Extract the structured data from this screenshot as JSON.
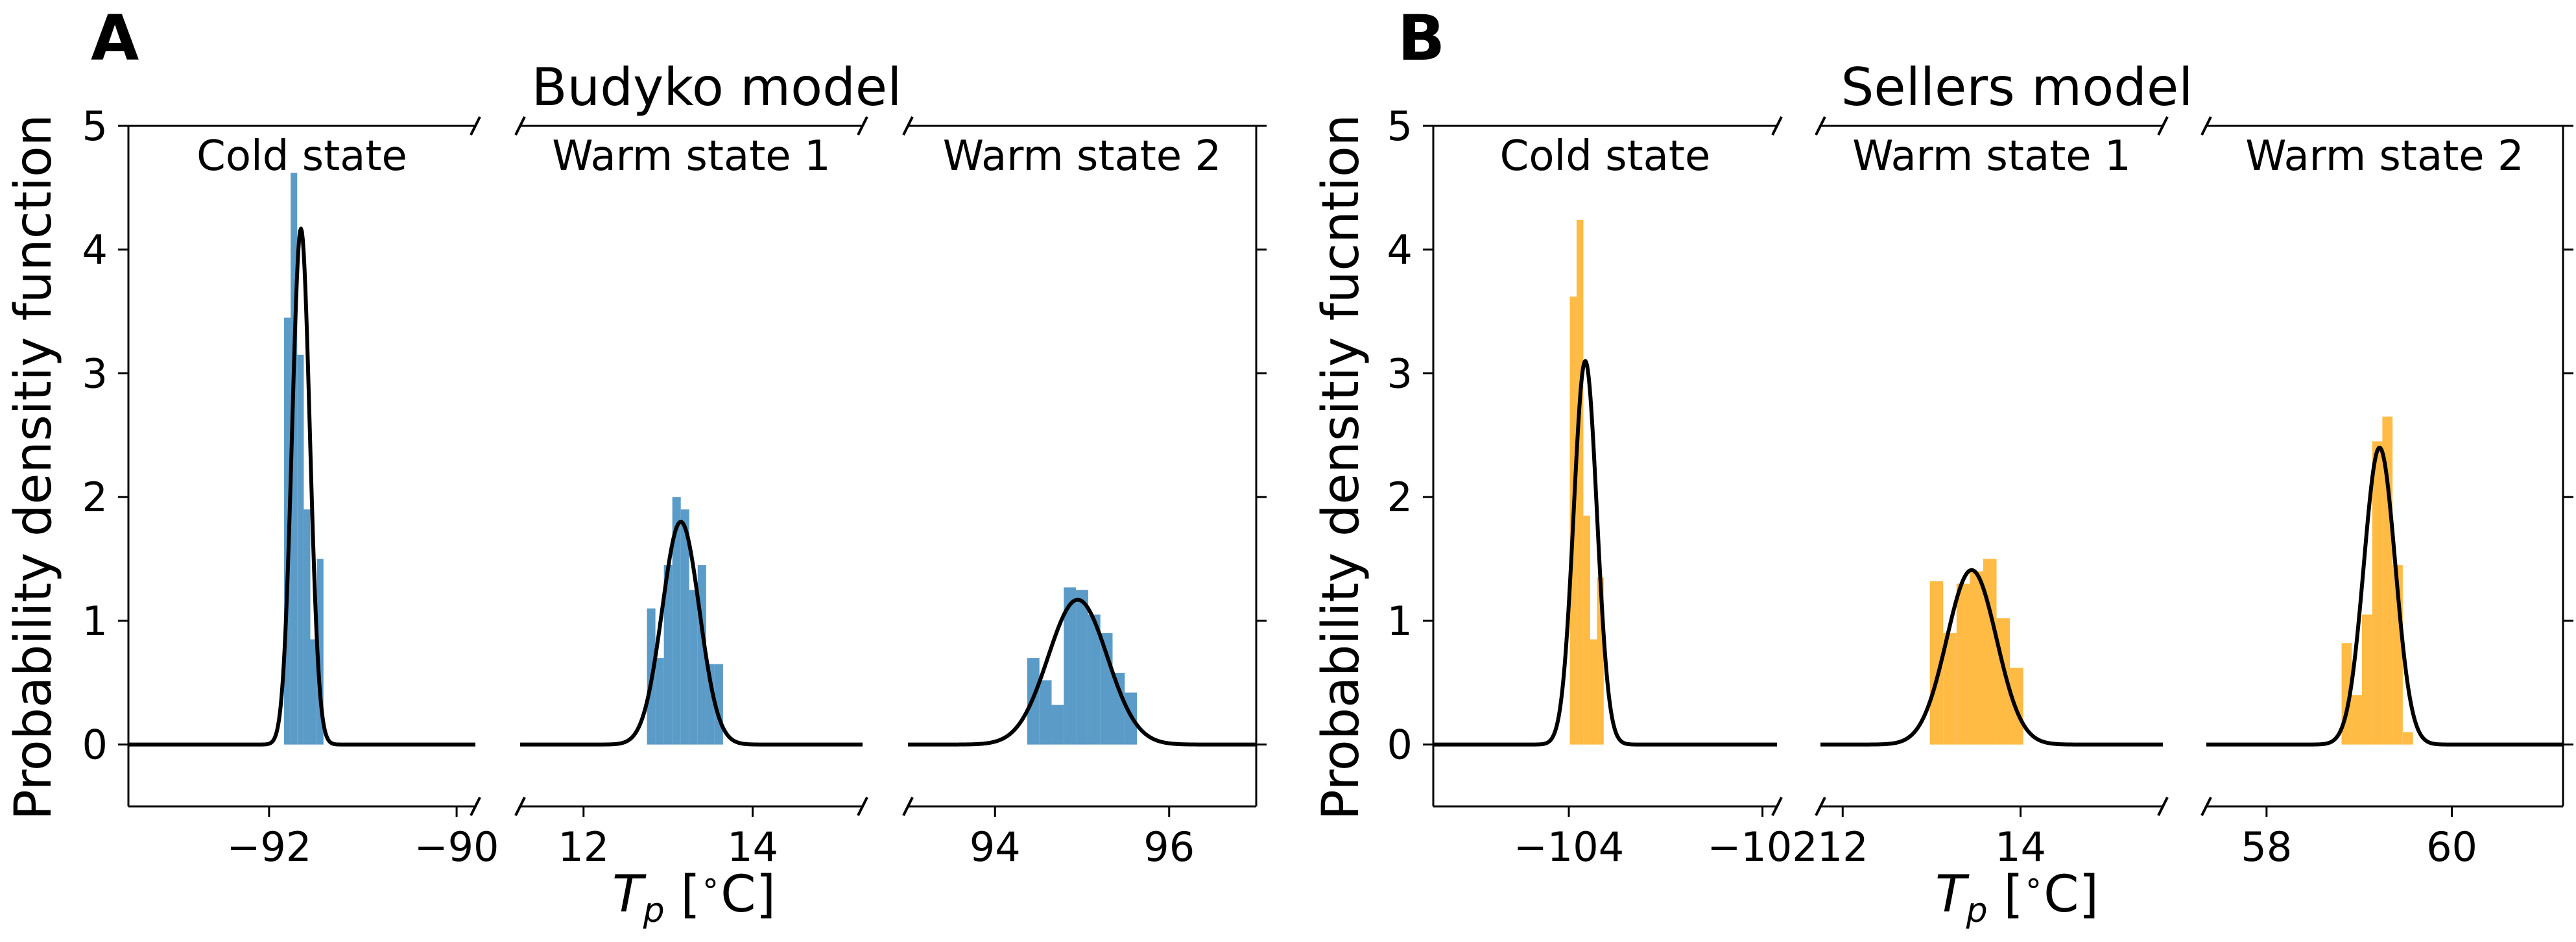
{
  "chart_data": [
    {
      "type": "histogram",
      "panel_label": "A",
      "title": "Budyko model",
      "ylabel": "Probability densitiy function",
      "xlabel": "T_p [°C]",
      "ylim": [
        -0.5,
        5
      ],
      "yticks": [
        0,
        1,
        2,
        3,
        4,
        5
      ],
      "colors": {
        "histogram": "#5b9bc8",
        "fit_line": "#000000"
      },
      "subplots": [
        {
          "label": "Cold state",
          "xlim": [
            -93.5,
            -89.8
          ],
          "xticks": [
            -92,
            -90
          ],
          "bin_width": 0.07,
          "bins": [
            [
              -91.84,
              3.45
            ],
            [
              -91.77,
              4.62
            ],
            [
              -91.7,
              3.15
            ],
            [
              -91.63,
              1.9
            ],
            [
              -91.56,
              0.85
            ],
            [
              -91.49,
              1.5
            ]
          ],
          "fit": {
            "mean": -91.66,
            "sd": 0.095,
            "peak": 4.17
          }
        },
        {
          "label": "Warm state 1",
          "xlim": [
            11.25,
            15.3
          ],
          "xticks": [
            12,
            14
          ],
          "bin_width": 0.1,
          "bins": [
            [
              12.75,
              1.1
            ],
            [
              12.85,
              0.7
            ],
            [
              12.95,
              1.45
            ],
            [
              13.05,
              2.0
            ],
            [
              13.15,
              1.9
            ],
            [
              13.25,
              1.25
            ],
            [
              13.35,
              1.45
            ],
            [
              13.45,
              0.65
            ],
            [
              13.55,
              0.65
            ]
          ],
          "fit": {
            "mean": 13.15,
            "sd": 0.22,
            "peak": 1.8
          }
        },
        {
          "label": "Warm state 2",
          "xlim": [
            93.0,
            97.0
          ],
          "xticks": [
            94,
            96
          ],
          "bin_width": 0.14,
          "bins": [
            [
              94.37,
              0.7
            ],
            [
              94.51,
              0.52
            ],
            [
              94.65,
              0.32
            ],
            [
              94.79,
              1.27
            ],
            [
              94.93,
              1.25
            ],
            [
              95.07,
              1.05
            ],
            [
              95.21,
              0.9
            ],
            [
              95.35,
              0.58
            ],
            [
              95.49,
              0.42
            ]
          ],
          "fit": {
            "mean": 94.95,
            "sd": 0.34,
            "peak": 1.17
          }
        }
      ]
    },
    {
      "type": "histogram",
      "panel_label": "B",
      "title": "Sellers model",
      "ylabel": "Probability densitiy fucntion",
      "xlabel": "T_p [°C]",
      "ylim": [
        -0.5,
        5
      ],
      "yticks": [
        0,
        1,
        2,
        3,
        4,
        5
      ],
      "colors": {
        "histogram": "#ffbb44",
        "fit_line": "#000000"
      },
      "subplots": [
        {
          "label": "Cold state",
          "xlim": [
            -105.4,
            -101.85
          ],
          "xticks": [
            -104,
            -102
          ],
          "bin_width": 0.07,
          "bins": [
            [
              -103.99,
              3.62
            ],
            [
              -103.92,
              4.24
            ],
            [
              -103.85,
              1.85
            ],
            [
              -103.78,
              0.85
            ],
            [
              -103.71,
              1.35
            ]
          ],
          "fit": {
            "mean": -103.83,
            "sd": 0.12,
            "peak": 3.1
          }
        },
        {
          "label": "Warm state 1",
          "xlim": [
            11.75,
            15.6
          ],
          "xticks": [
            12,
            14
          ],
          "bin_width": 0.15,
          "bins": [
            [
              12.98,
              1.32
            ],
            [
              13.13,
              0.9
            ],
            [
              13.28,
              1.3
            ],
            [
              13.43,
              1.4
            ],
            [
              13.58,
              1.5
            ],
            [
              13.73,
              1.02
            ],
            [
              13.88,
              0.62
            ]
          ],
          "fit": {
            "mean": 13.45,
            "sd": 0.28,
            "peak": 1.41
          }
        },
        {
          "label": "Warm state 2",
          "xlim": [
            57.35,
            61.2
          ],
          "xticks": [
            58,
            60
          ],
          "bin_width": 0.11,
          "bins": [
            [
              58.81,
              0.82
            ],
            [
              58.92,
              0.4
            ],
            [
              59.03,
              1.05
            ],
            [
              59.14,
              2.45
            ],
            [
              59.25,
              2.65
            ],
            [
              59.36,
              1.45
            ],
            [
              59.47,
              0.1
            ]
          ],
          "fit": {
            "mean": 59.22,
            "sd": 0.17,
            "peak": 2.4
          }
        }
      ]
    }
  ]
}
